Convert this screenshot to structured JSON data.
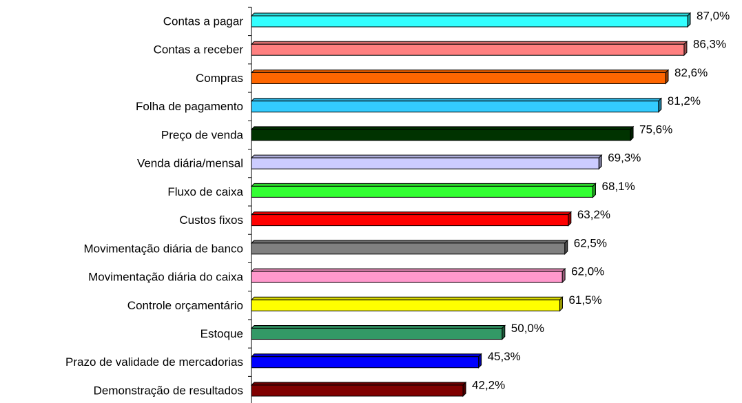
{
  "chart_data": {
    "type": "barh",
    "categories": [
      "Contas a pagar",
      "Contas a receber",
      "Compras",
      "Folha de pagamento",
      "Preço de venda",
      "Venda diária/mensal",
      "Fluxo de caixa",
      "Custos fixos",
      "Movimentação diária de banco",
      "Movimentação diária do caixa",
      "Controle orçamentário",
      "Estoque",
      "Prazo de validade de mercadorias",
      "Demonstração de resultados"
    ],
    "values": [
      87.0,
      86.3,
      82.6,
      81.2,
      75.6,
      69.3,
      68.1,
      63.2,
      62.5,
      62.0,
      61.5,
      50.0,
      45.3,
      42.2
    ],
    "value_labels": [
      "87,0%",
      "86,3%",
      "82,6%",
      "81,2%",
      "75,6%",
      "69,3%",
      "68,1%",
      "63,2%",
      "62,5%",
      "62,0%",
      "61,5%",
      "50,0%",
      "45,3%",
      "42,2%"
    ],
    "colors": [
      "#33ffff",
      "#ff8080",
      "#ff6600",
      "#33ccff",
      "#003300",
      "#ccccff",
      "#33ff33",
      "#ff0000",
      "#808080",
      "#ff99cc",
      "#ffff00",
      "#339966",
      "#0000ff",
      "#800000"
    ]
  }
}
